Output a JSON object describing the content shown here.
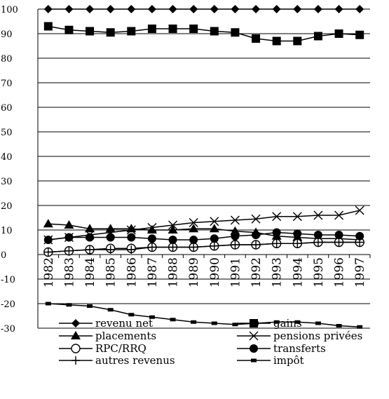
{
  "chart_data": {
    "type": "line",
    "categories": [
      "1982",
      "1983",
      "1984",
      "1985",
      "1986",
      "1987",
      "1988",
      "1989",
      "1990",
      "1991",
      "1992",
      "1993",
      "1994",
      "1995",
      "1996",
      "1997"
    ],
    "ylim": [
      -30,
      100
    ],
    "yticks": [
      -30,
      -20,
      -10,
      0,
      10,
      20,
      30,
      40,
      50,
      60,
      70,
      80,
      90,
      100
    ],
    "ytick_labels": [
      "-30",
      "-20",
      "-10",
      "0",
      "10",
      "20",
      "30",
      "40",
      "50",
      "60",
      "70",
      "80",
      "90",
      "100"
    ],
    "grid": "horizontal",
    "legend_position": "bottom",
    "series": [
      {
        "name": "revenu net",
        "marker": "diamond",
        "values": [
          100,
          100,
          100,
          100,
          100,
          100,
          100,
          100,
          100,
          100,
          100,
          100,
          100,
          100,
          100,
          100
        ]
      },
      {
        "name": "gains",
        "marker": "square",
        "values": [
          93,
          91.5,
          91,
          90.5,
          91,
          92,
          92,
          92,
          91,
          90.5,
          88,
          87,
          87,
          89,
          90,
          89.5
        ]
      },
      {
        "name": "placements",
        "marker": "triangle",
        "values": [
          12.5,
          12,
          10.5,
          10.5,
          10.5,
          10,
          10,
          10.5,
          10.5,
          9.5,
          9,
          7.5,
          7,
          6.5,
          6.5,
          6
        ]
      },
      {
        "name": "pensions privées",
        "marker": "x",
        "values": [
          6,
          7,
          8,
          9,
          10,
          11,
          12,
          13,
          13.5,
          14,
          14.5,
          15.5,
          15.5,
          16,
          16,
          18
        ]
      },
      {
        "name": "RPC/RRQ",
        "marker": "circle-open",
        "values": [
          1,
          1.5,
          2,
          2.5,
          2.5,
          3,
          3,
          3,
          3.5,
          4,
          4,
          4.5,
          4.5,
          5,
          5,
          5
        ]
      },
      {
        "name": "transferts",
        "marker": "circle-filled",
        "values": [
          6,
          7,
          7,
          7,
          7,
          6.5,
          6,
          6,
          6.5,
          7.5,
          8,
          9,
          8.5,
          8,
          8,
          7.5
        ]
      },
      {
        "name": "autres revenus",
        "marker": "plus",
        "values": [
          1,
          1.5,
          2,
          2,
          2,
          3,
          3,
          3,
          3.5,
          4,
          4,
          4.5,
          4.5,
          5,
          5,
          5
        ]
      },
      {
        "name": "impôt",
        "marker": "dash",
        "values": [
          -20,
          -20.5,
          -21,
          -22.5,
          -24.5,
          -25.5,
          -26.5,
          -27.5,
          -28,
          -28.5,
          -28,
          -27.5,
          -27.5,
          -28,
          -29,
          -29.5
        ]
      }
    ],
    "colors": {
      "line": "#000000",
      "grid": "#000000",
      "background": "#ffffff"
    }
  }
}
